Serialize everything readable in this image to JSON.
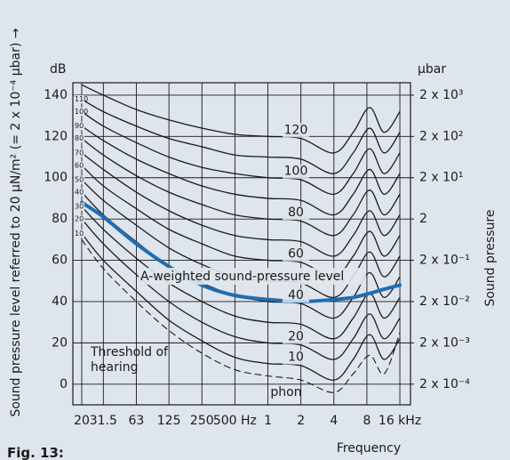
{
  "chart_data": {
    "type": "line",
    "y_label": "Sound pressure level referred to 20 μN/m² (= 2 x 10⁻⁴ μbar) →",
    "y_unit": "dB",
    "y2_label": "Sound pressure",
    "y2_unit": "μbar",
    "x_label": "Frequency",
    "caption": "Fig. 13:",
    "annotations": [
      "phon"
    ],
    "x_scale": "log",
    "y2_scale": "log",
    "grid": true,
    "x": [
      20,
      31.5,
      63,
      125,
      250,
      500,
      1000,
      2000,
      4000,
      6000,
      8500,
      11500,
      16000
    ],
    "xlim": [
      16.6,
      20000
    ],
    "xticks": [
      20,
      {
        "value": 31.5,
        "label": "31.5"
      },
      63,
      125,
      250,
      {
        "value": 500,
        "label": "500 Hz"
      },
      {
        "value": 1000,
        "label": "1"
      },
      {
        "value": 2000,
        "label": "2"
      },
      {
        "value": 4000,
        "label": "4"
      },
      {
        "value": 8000,
        "label": "8"
      },
      {
        "value": 16000,
        "label": "16 kHz"
      }
    ],
    "ylim": [
      -10,
      146
    ],
    "yticks": [
      0,
      20,
      40,
      60,
      80,
      100,
      120,
      140
    ],
    "y2lim": [
      6.32e-05,
      3990
    ],
    "y2ticks": [
      {
        "value": 0.0002,
        "label": "2 x 10⁻⁴"
      },
      {
        "value": 0.002,
        "label": "2 x 10⁻³"
      },
      {
        "value": 0.02,
        "label": "2 x 10⁻²"
      },
      {
        "value": 0.2,
        "label": "2 x 10⁻¹"
      },
      2,
      {
        "value": 20,
        "label": "2 x 10¹"
      },
      {
        "value": 200,
        "label": "2 x 10²"
      },
      {
        "value": 2000,
        "label": "2 x 10³"
      }
    ],
    "series": [
      {
        "name": "Threshold of hearing",
        "color": "#1a1a1a",
        "line_style": "dashed",
        "values": [
          70,
          56,
          40,
          26,
          15,
          7,
          4,
          2,
          -4,
          5,
          14,
          5,
          25
        ]
      },
      {
        "name": "10",
        "color": "#1a1a1a",
        "values": [
          73,
          60,
          45,
          31,
          21,
          13,
          10,
          9,
          2,
          12,
          24,
          12,
          22
        ]
      },
      {
        "name": "20",
        "color": "#1a1a1a",
        "values": [
          80,
          68,
          53,
          40,
          30,
          23,
          20,
          19,
          12,
          22,
          34,
          22,
          32
        ]
      },
      {
        "name": "30",
        "color": "#1a1a1a",
        "values": [
          86,
          75,
          61,
          49,
          40,
          33,
          30,
          29,
          22,
          32,
          44,
          32,
          42
        ]
      },
      {
        "name": "40",
        "color": "#1a1a1a",
        "values": [
          93,
          82,
          69,
          57,
          49,
          43,
          40,
          39,
          32,
          42,
          54,
          42,
          52
        ]
      },
      {
        "name": "50",
        "color": "#1a1a1a",
        "values": [
          99,
          89,
          77,
          66,
          58,
          52,
          50,
          49,
          42,
          52,
          64,
          52,
          62
        ]
      },
      {
        "name": "60",
        "color": "#1a1a1a",
        "values": [
          106,
          96,
          85,
          75,
          68,
          62,
          60,
          59,
          52,
          62,
          74,
          62,
          72
        ]
      },
      {
        "name": "70",
        "color": "#1a1a1a",
        "values": [
          112,
          104,
          93,
          84,
          77,
          72,
          70,
          69,
          62,
          72,
          84,
          72,
          82
        ]
      },
      {
        "name": "80",
        "color": "#1a1a1a",
        "values": [
          119,
          111,
          101,
          93,
          87,
          82,
          80,
          79,
          72,
          82,
          94,
          82,
          92
        ]
      },
      {
        "name": "90",
        "color": "#1a1a1a",
        "values": [
          125,
          118,
          109,
          102,
          96,
          92,
          90,
          89,
          82,
          92,
          104,
          92,
          102
        ]
      },
      {
        "name": "100",
        "color": "#1a1a1a",
        "values": [
          132,
          125,
          117,
          110,
          105,
          102,
          100,
          99,
          92,
          102,
          114,
          102,
          112
        ]
      },
      {
        "name": "110",
        "color": "#1a1a1a",
        "values": [
          138,
          132,
          125,
          119,
          115,
          111,
          110,
          109,
          102,
          112,
          124,
          112,
          122
        ]
      },
      {
        "name": "120",
        "color": "#1a1a1a",
        "values": [
          145,
          140,
          133,
          128,
          124,
          121,
          120,
          119,
          112,
          122,
          134,
          122,
          132
        ]
      },
      {
        "name": "A-weighted sound-pressure level",
        "color": "#1f6db3",
        "line_style": "thick",
        "values": [
          88,
          81,
          68,
          57,
          48,
          43,
          41,
          40,
          41,
          42,
          44,
          46,
          48
        ]
      }
    ]
  }
}
